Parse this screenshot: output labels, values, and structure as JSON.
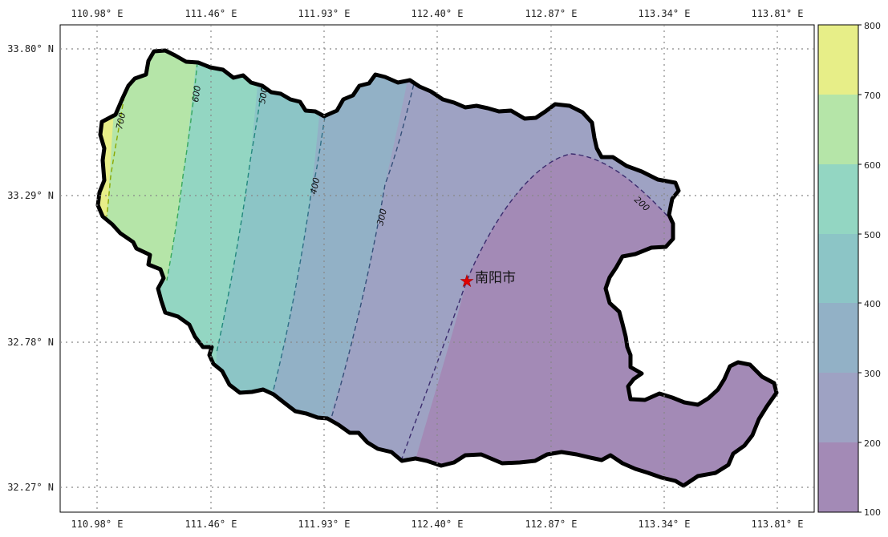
{
  "map": {
    "lon_ticks": [
      "110.98° E",
      "111.46° E",
      "111.93° E",
      "112.40° E",
      "112.87° E",
      "113.34° E",
      "113.81° E"
    ],
    "lat_ticks": [
      "33.80° N",
      "33.29° N",
      "32.78° N",
      "32.27° N"
    ],
    "contour_labels": [
      "700",
      "600",
      "500",
      "400",
      "300",
      "200"
    ],
    "city": {
      "name": "南阳市",
      "marker": "red-star-icon"
    },
    "colorbar": {
      "ticks": [
        "800",
        "700",
        "600",
        "500",
        "400",
        "300",
        "200",
        "100"
      ],
      "colors": [
        "#e7ee88",
        "#b5e5a8",
        "#93d6c2",
        "#8cc5c6",
        "#92b1c6",
        "#9ea2c3",
        "#a38ab6"
      ]
    },
    "grid": "on",
    "boundary_color": "#000000"
  }
}
